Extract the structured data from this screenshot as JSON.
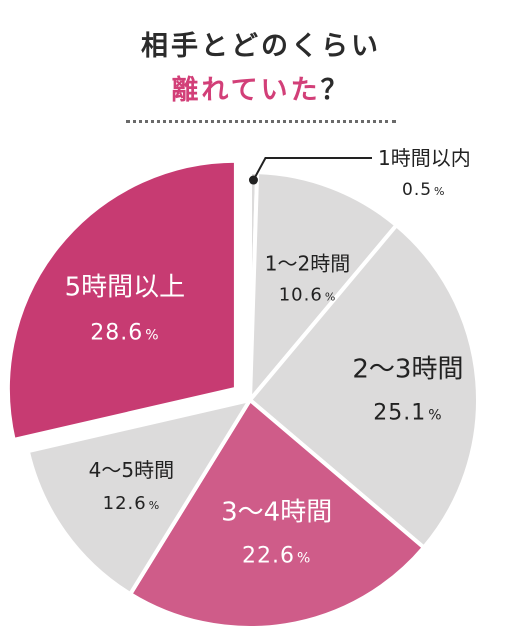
{
  "title": {
    "line1": "相手とどのくらい",
    "line2_accent": "離れていた",
    "line2_tail": "？"
  },
  "colors": {
    "pink": "#c73b72",
    "pink_light": "#cf5c89",
    "gray": "#dcdbdb",
    "title_accent": "#d23f78",
    "text_dark": "#222222"
  },
  "chart_data": {
    "type": "pie",
    "start_angle_deg": 0,
    "direction": "clockwise",
    "slices": [
      {
        "label": "1時間以内",
        "value": 0.5,
        "value_text": "0.5",
        "unit": "%",
        "color": "#dcdbdb"
      },
      {
        "label": "1～2時間",
        "value": 10.6,
        "value_text": "10.6",
        "unit": "%",
        "color": "#dcdbdb"
      },
      {
        "label": "2～3時間",
        "value": 25.1,
        "value_text": "25.1",
        "unit": "%",
        "color": "#dcdbdb"
      },
      {
        "label": "3～4時間",
        "value": 22.6,
        "value_text": "22.6",
        "unit": "%",
        "color": "#cf5c89"
      },
      {
        "label": "4～5時間",
        "value": 12.6,
        "value_text": "12.6",
        "unit": "%",
        "color": "#dcdbdb"
      },
      {
        "label": "5時間以上",
        "value": 28.6,
        "value_text": "28.6",
        "unit": "%",
        "color": "#c73b72"
      }
    ]
  }
}
